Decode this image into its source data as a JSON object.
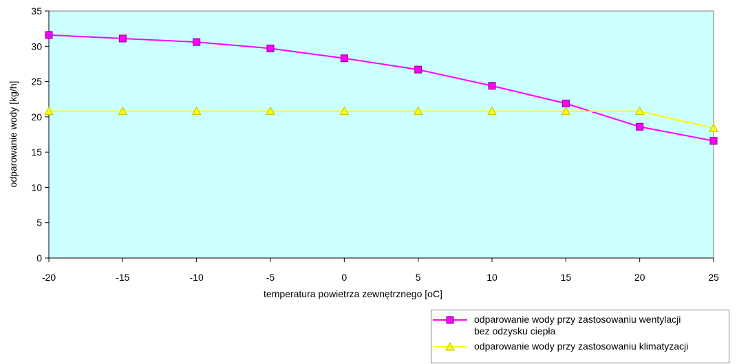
{
  "chart_data": {
    "type": "line",
    "title": "",
    "xlabel": "temperatura powietrza zewnętrznego [oC]",
    "ylabel": "odparowanie wody [kg/h]",
    "x": [
      -20,
      -15,
      -10,
      -5,
      0,
      5,
      10,
      15,
      20,
      25
    ],
    "x_ticks": [
      "-20",
      "-15",
      "-10",
      "-5",
      "0",
      "5",
      "10",
      "15",
      "20",
      "25"
    ],
    "y_ticks": [
      "0",
      "5",
      "10",
      "15",
      "20",
      "25",
      "30",
      "35"
    ],
    "ylim": [
      0,
      35
    ],
    "grid": false,
    "legend_placement": "bottom-right",
    "plot_background": "#ccffff",
    "series": [
      {
        "name": "odparowanie wody przy zastosowaniu wentylacji bez odzysku ciepła",
        "name_lines": [
          "odparowanie wody przy zastosowaniu wentylacji",
          "bez odzysku ciepła"
        ],
        "color": "#ff00ff",
        "marker": "square",
        "values": [
          31.6,
          31.1,
          30.6,
          29.7,
          28.3,
          26.7,
          24.4,
          21.9,
          18.6,
          16.6
        ]
      },
      {
        "name": "odparowanie wody przy zastosowaniu klimatyzacji",
        "name_lines": [
          "odparowanie wody przy zastosowaniu klimatyzacji"
        ],
        "color": "#ffff00",
        "marker": "triangle",
        "values": [
          20.8,
          20.8,
          20.8,
          20.8,
          20.8,
          20.8,
          20.8,
          20.8,
          20.8,
          18.4
        ]
      }
    ]
  }
}
